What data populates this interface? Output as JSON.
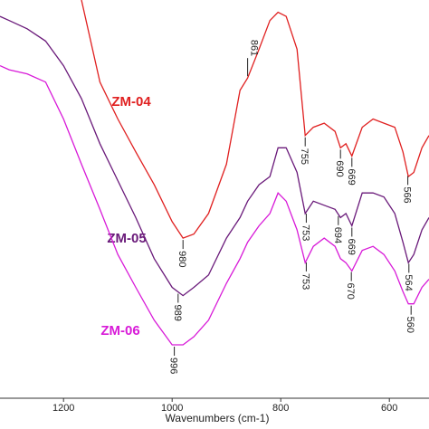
{
  "chart_data": {
    "type": "line",
    "x_label": "Wavenumbers (cm-1)",
    "x": [
      1317,
      1300,
      1267,
      1233,
      1200,
      1167,
      1133,
      1100,
      1067,
      1033,
      1000,
      980,
      960,
      933,
      900,
      875,
      861,
      840,
      820,
      805,
      790,
      770,
      755,
      740,
      720,
      700,
      690,
      680,
      669,
      650,
      630,
      610,
      590,
      575,
      565,
      555,
      540,
      527
    ],
    "xlim": [
      1317,
      527
    ],
    "xticks": [
      1200,
      1000,
      800,
      600
    ],
    "ylim": [
      3,
      100
    ],
    "series": [
      {
        "name": "ZM-04",
        "color": "#e02020",
        "values": [
          null,
          null,
          null,
          null,
          null,
          100,
          80,
          71,
          63,
          55,
          46,
          42,
          43,
          48,
          60,
          78,
          81,
          88,
          95,
          97,
          96,
          88,
          67,
          69,
          70,
          68,
          64,
          65,
          62,
          69,
          71,
          70,
          69,
          63,
          57,
          58,
          64,
          67
        ],
        "peaks": [
          861,
          980,
          755,
          690,
          669,
          566
        ]
      },
      {
        "name": "ZM-05",
        "color": "#6a1a7a",
        "values": [
          96,
          95,
          93,
          90,
          84,
          76,
          65,
          56,
          47,
          37,
          30,
          28,
          30,
          33,
          42,
          47,
          51,
          55,
          57,
          64,
          64,
          58,
          48,
          51,
          50,
          49,
          47,
          48,
          45,
          53,
          53,
          52,
          48,
          41,
          36,
          38,
          44,
          47
        ],
        "peaks": [
          989,
          753,
          694,
          669,
          564
        ]
      },
      {
        "name": "ZM-06",
        "color": "#d81ad8",
        "values": [
          84,
          83,
          82,
          80,
          71,
          60,
          49,
          38,
          30,
          22,
          16,
          16,
          18,
          22,
          31,
          37,
          41,
          45,
          48,
          53,
          51,
          44,
          36,
          40,
          42,
          40,
          37,
          36,
          34,
          39,
          40,
          38,
          34,
          29,
          26,
          26,
          30,
          32
        ],
        "peaks": [
          996,
          753,
          670,
          560
        ]
      }
    ]
  }
}
